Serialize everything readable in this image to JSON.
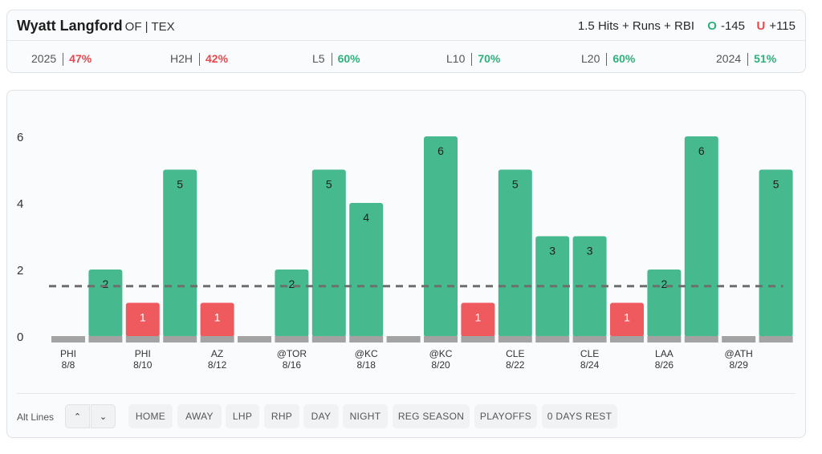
{
  "player": {
    "name": "Wyatt Langford",
    "position_team": "OF | TEX"
  },
  "prop": {
    "label": "1.5 Hits + Runs + RBI",
    "over_symbol": "O",
    "over_odds": "-145",
    "under_symbol": "U",
    "under_odds": "+115"
  },
  "stats": [
    {
      "label": "2025",
      "pct": "47%",
      "trend": "bad"
    },
    {
      "label": "H2H",
      "pct": "42%",
      "trend": "bad"
    },
    {
      "label": "L5",
      "pct": "60%",
      "trend": "good"
    },
    {
      "label": "L10",
      "pct": "70%",
      "trend": "good"
    },
    {
      "label": "L20",
      "pct": "60%",
      "trend": "good"
    },
    {
      "label": "2024",
      "pct": "51%",
      "trend": "good"
    }
  ],
  "colors": {
    "hit": "#46b98e",
    "miss": "#ee5a5d",
    "base": "#a3a3a3",
    "line": "#6e6e6e"
  },
  "chart_data": {
    "type": "bar",
    "title": "",
    "ylim": [
      0,
      6
    ],
    "yticks": [
      0,
      2,
      4,
      6
    ],
    "threshold": 1.5,
    "values": [
      0,
      2,
      1,
      5,
      1,
      0,
      2,
      5,
      4,
      0,
      6,
      1,
      5,
      3,
      3,
      1,
      2,
      6,
      0,
      5
    ],
    "opponents": [
      "PHI",
      "",
      "PHI",
      "",
      "AZ",
      "",
      "@TOR",
      "",
      "@KC",
      "",
      "@KC",
      "",
      "CLE",
      "",
      "CLE",
      "",
      "LAA",
      "",
      "@ATH",
      ""
    ],
    "dates": [
      "8/8",
      "",
      "8/10",
      "",
      "8/12",
      "",
      "8/16",
      "",
      "8/18",
      "",
      "8/20",
      "",
      "8/22",
      "",
      "8/24",
      "",
      "8/26",
      "",
      "8/29",
      ""
    ]
  },
  "toolbar": {
    "alt_lines_label": "Alt Lines",
    "up_symbol": "⌃",
    "down_symbol": "⌄",
    "filters": [
      "HOME",
      "AWAY",
      "LHP",
      "RHP",
      "DAY",
      "NIGHT",
      "REG SEASON",
      "PLAYOFFS",
      "0 DAYS REST"
    ]
  }
}
